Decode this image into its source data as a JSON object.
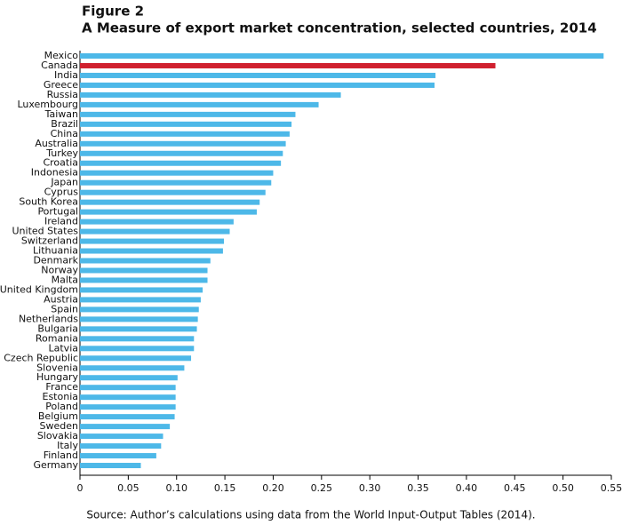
{
  "chart_data": {
    "type": "barh",
    "title": "Figure 2",
    "subtitle": "A Measure of export market concentration, selected countries, 2014",
    "source": "Source: Author’s calculations using data from the World Input-Output Tables (2014).",
    "categories": [
      "Mexico",
      "Canada",
      "India",
      "Greece",
      "Russia",
      "Luxembourg",
      "Taiwan",
      "Brazil",
      "China",
      "Australia",
      "Turkey",
      "Croatia",
      "Indonesia",
      "Japan",
      "Cyprus",
      "South Korea",
      "Portugal",
      "Ireland",
      "United States",
      "Switzerland",
      "Lithuania",
      "Denmark",
      "Norway",
      "Malta",
      "United Kingdom",
      "Austria",
      "Spain",
      "Netherlands",
      "Bulgaria",
      "Romania",
      "Latvia",
      "Czech Republic",
      "Slovenia",
      "Hungary",
      "France",
      "Estonia",
      "Poland",
      "Belgium",
      "Sweden",
      "Slovakia",
      "Italy",
      "Finland",
      "Germany"
    ],
    "values": [
      0.542,
      0.43,
      0.368,
      0.367,
      0.27,
      0.247,
      0.223,
      0.219,
      0.217,
      0.213,
      0.21,
      0.208,
      0.2,
      0.198,
      0.192,
      0.186,
      0.183,
      0.159,
      0.155,
      0.149,
      0.148,
      0.135,
      0.132,
      0.132,
      0.127,
      0.125,
      0.123,
      0.122,
      0.121,
      0.118,
      0.118,
      0.115,
      0.108,
      0.101,
      0.099,
      0.099,
      0.099,
      0.098,
      0.093,
      0.086,
      0.084,
      0.079,
      0.063
    ],
    "colors": [
      "#4db8e8",
      "#d0202e",
      "#4db8e8",
      "#4db8e8",
      "#4db8e8",
      "#4db8e8",
      "#4db8e8",
      "#4db8e8",
      "#4db8e8",
      "#4db8e8",
      "#4db8e8",
      "#4db8e8",
      "#4db8e8",
      "#4db8e8",
      "#4db8e8",
      "#4db8e8",
      "#4db8e8",
      "#4db8e8",
      "#4db8e8",
      "#4db8e8",
      "#4db8e8",
      "#4db8e8",
      "#4db8e8",
      "#4db8e8",
      "#4db8e8",
      "#4db8e8",
      "#4db8e8",
      "#4db8e8",
      "#4db8e8",
      "#4db8e8",
      "#4db8e8",
      "#4db8e8",
      "#4db8e8",
      "#4db8e8",
      "#4db8e8",
      "#4db8e8",
      "#4db8e8",
      "#4db8e8",
      "#4db8e8",
      "#4db8e8",
      "#4db8e8",
      "#4db8e8",
      "#4db8e8"
    ],
    "xlim": [
      0,
      0.55
    ],
    "xticks": [
      0,
      0.05,
      {
        "value": 0.1,
        "label": "0.10"
      },
      0.15,
      {
        "value": 0.2,
        "label": "0.20"
      },
      0.25,
      {
        "value": 0.3,
        "label": "0.30"
      },
      0.35,
      {
        "value": 0.4,
        "label": "0.40"
      },
      0.45,
      {
        "value": 0.5,
        "label": "0.50"
      },
      0.55
    ]
  }
}
